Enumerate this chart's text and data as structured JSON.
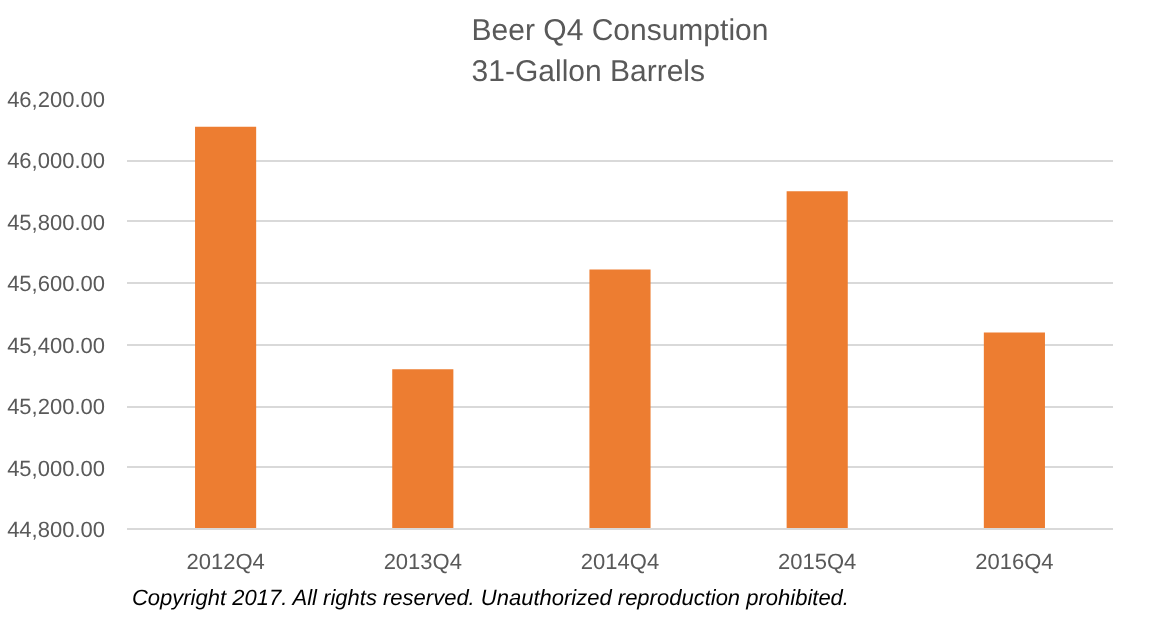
{
  "chart_data": {
    "type": "bar",
    "title": "Beer Q4 Consumption\n31-Gallon Barrels",
    "categories": [
      "2012Q4",
      "2013Q4",
      "2014Q4",
      "2015Q4",
      "2016Q4"
    ],
    "values": [
      46110,
      45320,
      45645,
      45900,
      45440
    ],
    "color": "#ed7d31",
    "ylim": [
      44800,
      46200
    ],
    "yticks": [
      {
        "value": 44800,
        "label": "44,800.00"
      },
      {
        "value": 45000,
        "label": "45,000.00"
      },
      {
        "value": 45200,
        "label": "45,200.00"
      },
      {
        "value": 45400,
        "label": "45,400.00"
      },
      {
        "value": 45600,
        "label": "45,600.00"
      },
      {
        "value": 45800,
        "label": "45,800.00"
      },
      {
        "value": 46000,
        "label": "46,000.00"
      },
      {
        "value": 46200,
        "label": "46,200.00"
      }
    ],
    "grid": "y",
    "annotations": [
      "Copyright 2017.  All rights reserved. Unauthorized reproduction prohibited."
    ]
  }
}
